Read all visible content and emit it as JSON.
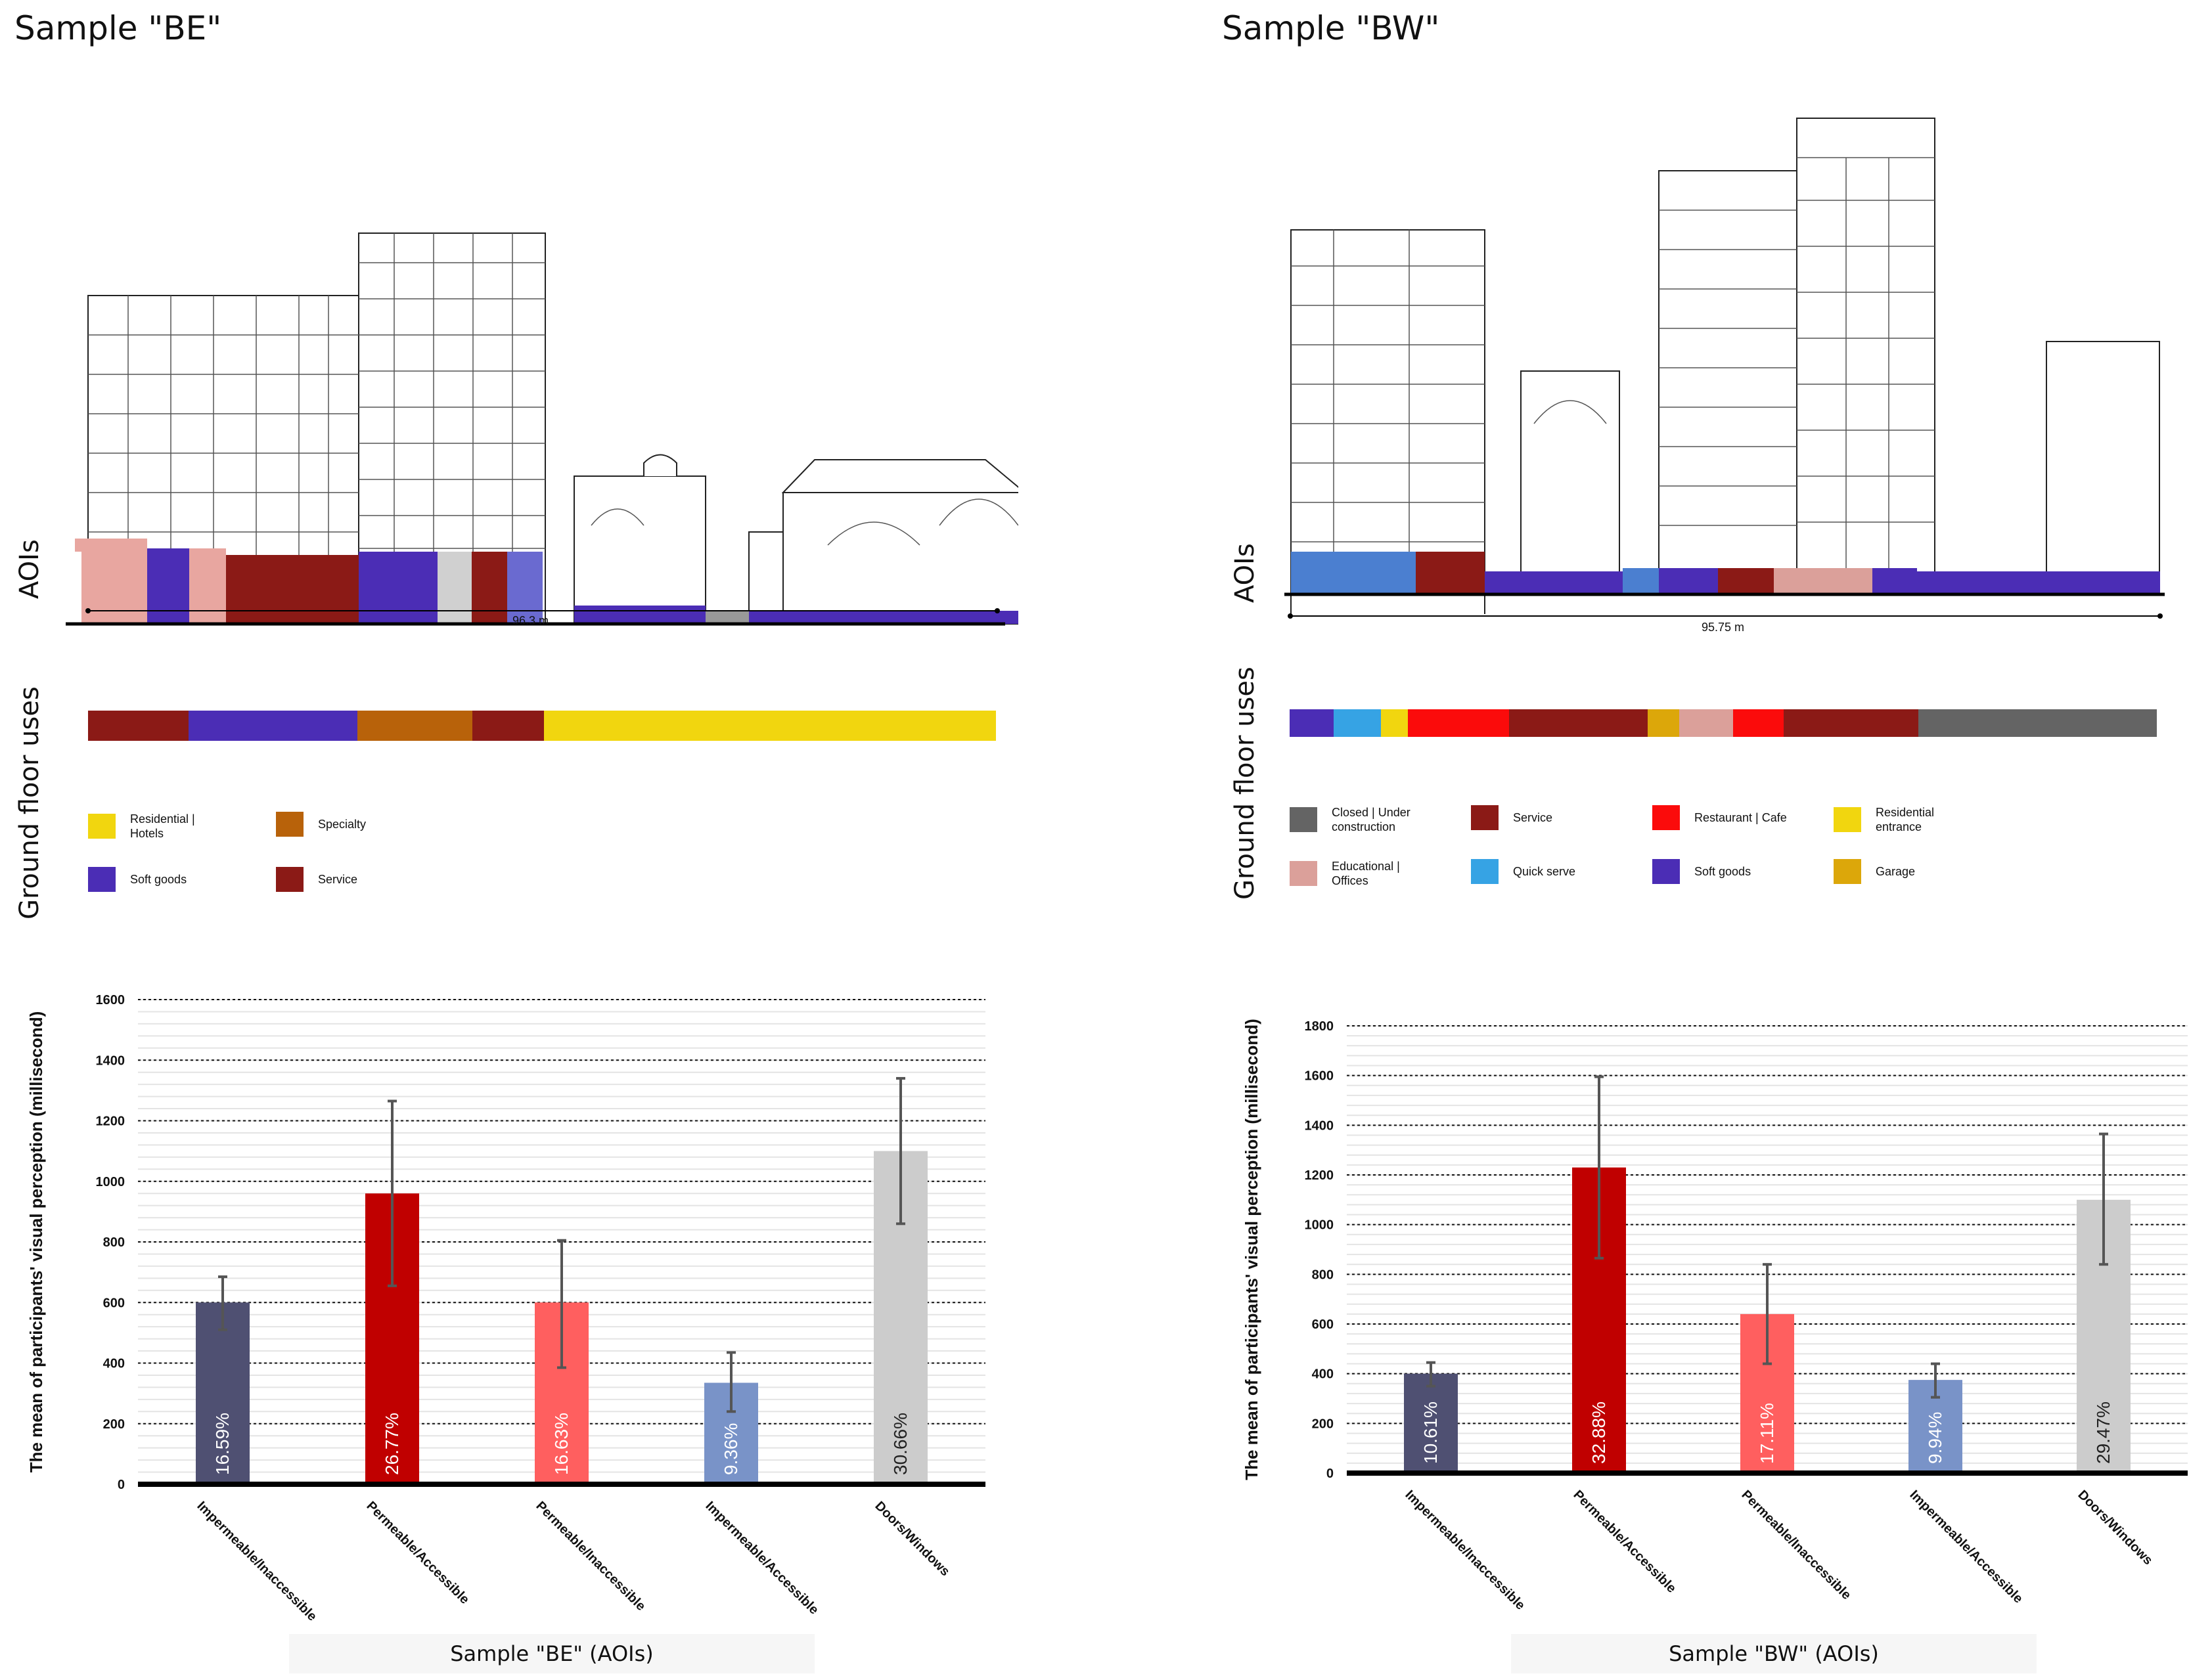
{
  "samples": {
    "be": {
      "title": "Sample \"BE\"",
      "aois_label": "AOIs",
      "ground_label": "Ground floor uses",
      "distance": "96.3 m",
      "strip": [
        {
          "use": "Service",
          "color": "#8b1a16",
          "share": 0.111
        },
        {
          "use": "Soft goods",
          "color": "#4b2db5",
          "share": 0.186
        },
        {
          "use": "Specialty",
          "color": "#b8620a",
          "share": 0.126
        },
        {
          "use": "Service",
          "color": "#8b1a16",
          "share": 0.079
        },
        {
          "use": "Residential | Hotels",
          "color": "#f1d60f",
          "share": 0.498
        }
      ],
      "legend": [
        {
          "label": "Residential | Hotels",
          "color": "#f1d60f"
        },
        {
          "label": "Specialty",
          "color": "#b8620a"
        },
        {
          "label": "Soft goods",
          "color": "#4b2db5"
        },
        {
          "label": "Service",
          "color": "#8b1a16"
        }
      ],
      "caption": "Sample \"BE\" (AOIs)"
    },
    "bw": {
      "title": "Sample \"BW\"",
      "aois_label": "AOIs",
      "ground_label": "Ground floor uses",
      "distance": "95.75 m",
      "strip": [
        {
          "use": "Soft goods",
          "color": "#4b2db5",
          "share": 0.051
        },
        {
          "use": "Quick serve",
          "color": "#36a3e4",
          "share": 0.054
        },
        {
          "use": "Residential entrance",
          "color": "#f1d60f",
          "share": 0.031
        },
        {
          "use": "Restaurant | Cafe",
          "color": "#fb0b0b",
          "share": 0.117
        },
        {
          "use": "Service",
          "color": "#8b1a16",
          "share": 0.16
        },
        {
          "use": "Garage",
          "color": "#dca70a",
          "share": 0.036
        },
        {
          "use": "Educational | Offices",
          "color": "#dba09a",
          "share": 0.062
        },
        {
          "use": "Restaurant | Cafe",
          "color": "#fb0b0b",
          "share": 0.059
        },
        {
          "use": "Service",
          "color": "#8b1a16",
          "share": 0.155
        },
        {
          "use": "Closed | Under construction",
          "color": "#646464",
          "share": 0.275
        }
      ],
      "legend": [
        {
          "label": "Closed | Under construction",
          "color": "#646464"
        },
        {
          "label": "Service",
          "color": "#8b1a16"
        },
        {
          "label": "Restaurant | Cafe",
          "color": "#fb0b0b"
        },
        {
          "label": "Residential entrance",
          "color": "#f1d60f"
        },
        {
          "label": "Educational | Offices",
          "color": "#dba09a"
        },
        {
          "label": "Quick serve",
          "color": "#36a3e4"
        },
        {
          "label": "Soft goods",
          "color": "#4b2db5"
        },
        {
          "label": "Garage",
          "color": "#dca70a"
        }
      ],
      "caption": "Sample \"BW\" (AOIs)"
    }
  },
  "chart_data": [
    {
      "type": "bar",
      "sample": "BE",
      "ylabel": "The mean of participants' visual perception (millisecond)",
      "xlabel": "Sample \"BE\" (AOIs)",
      "ylim": [
        0,
        1600
      ],
      "yticks": [
        0,
        200,
        400,
        600,
        800,
        1000,
        1200,
        1400,
        1600
      ],
      "categories": [
        "Impermeable/Inaccessible",
        "Permeable/Accessible",
        "Permeable/Inaccessible",
        "Impermeable/Accessible",
        "Doors/Windows"
      ],
      "values": [
        600,
        960,
        600,
        335,
        1100
      ],
      "errors": [
        [
          510,
          685
        ],
        [
          655,
          1265
        ],
        [
          385,
          805
        ],
        [
          240,
          435
        ],
        [
          860,
          1340
        ]
      ],
      "percent_labels": [
        "16.59%",
        "26.77%",
        "16.63%",
        "9.36%",
        "30.66%"
      ],
      "colors": [
        "#4f5072",
        "#c00000",
        "#ff5f5f",
        "#7993c8",
        "#cccccc"
      ],
      "label_colors": [
        "#ffffff",
        "#ffffff",
        "#ffffff",
        "#ffffff",
        "#222222"
      ]
    },
    {
      "type": "bar",
      "sample": "BW",
      "ylabel": "The mean of participants' visual perception (millisecond)",
      "xlabel": "Sample \"BW\" (AOIs)",
      "ylim": [
        0,
        1800
      ],
      "yticks": [
        0,
        200,
        400,
        600,
        800,
        1000,
        1200,
        1400,
        1600,
        1800
      ],
      "categories": [
        "Impermeable/Inaccessible",
        "Permeable/Accessible",
        "Permeable/Inaccessible",
        "Impermeable/Accessible",
        "Doors/Windows"
      ],
      "values": [
        400,
        1230,
        640,
        375,
        1100
      ],
      "errors": [
        [
          350,
          445
        ],
        [
          865,
          1595
        ],
        [
          440,
          840
        ],
        [
          305,
          440
        ],
        [
          840,
          1365
        ]
      ],
      "percent_labels": [
        "10.61%",
        "32.88%",
        "17.11%",
        "9.94%",
        "29.47%"
      ],
      "colors": [
        "#4f5072",
        "#c00000",
        "#ff5f5f",
        "#7993c8",
        "#cccccc"
      ],
      "label_colors": [
        "#ffffff",
        "#ffffff",
        "#ffffff",
        "#ffffff",
        "#222222"
      ]
    }
  ]
}
